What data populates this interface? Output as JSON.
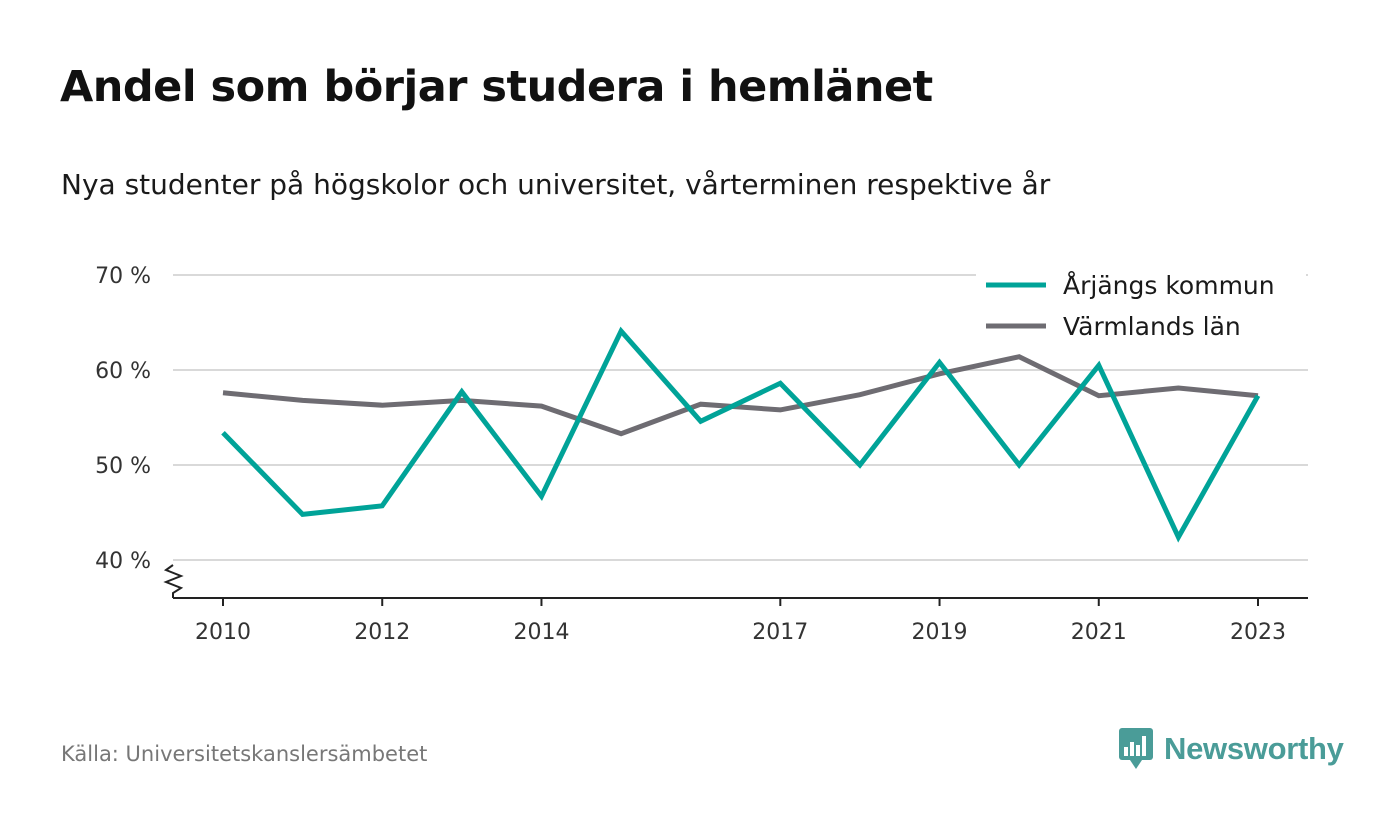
{
  "title": "Andel som börjar studera i hemlänet",
  "subtitle": "Nya studenter på högskolor och universitet, vårterminen respektive år",
  "source": "Källa: Universitetskanslersämbetet",
  "brand": {
    "name": "Newsworthy",
    "icon": "newsworthy-logo-icon",
    "color": "#4a9c98"
  },
  "chart_data": {
    "type": "line",
    "x": [
      2010,
      2011,
      2012,
      2013,
      2014,
      2015,
      2016,
      2017,
      2018,
      2019,
      2020,
      2021,
      2022,
      2023
    ],
    "x_tick_values": [
      2010,
      2012,
      2014,
      2017,
      2019,
      2021,
      2023
    ],
    "x_tick_labels": [
      "2010",
      "2012",
      "2014",
      "2017",
      "2019",
      "2021",
      "2023"
    ],
    "y_tick_values": [
      40,
      50,
      60,
      70
    ],
    "y_tick_labels": [
      "40 %",
      "50 %",
      "60 %",
      "70 %"
    ],
    "ylim": [
      36,
      70
    ],
    "y_axis_break": true,
    "grid": true,
    "legend_position": "top-right",
    "series": [
      {
        "name": "Årjängs kommun",
        "color": "#00a398",
        "values": [
          53.4,
          44.8,
          45.7,
          57.7,
          46.7,
          64.1,
          54.6,
          58.6,
          50.0,
          60.8,
          50.0,
          60.5,
          42.4,
          57.3
        ]
      },
      {
        "name": "Värmlands län",
        "color": "#6e6c72",
        "values": [
          57.6,
          56.8,
          56.3,
          56.8,
          56.2,
          53.3,
          56.4,
          55.8,
          57.4,
          59.6,
          61.4,
          57.3,
          58.1,
          57.3
        ]
      }
    ]
  }
}
